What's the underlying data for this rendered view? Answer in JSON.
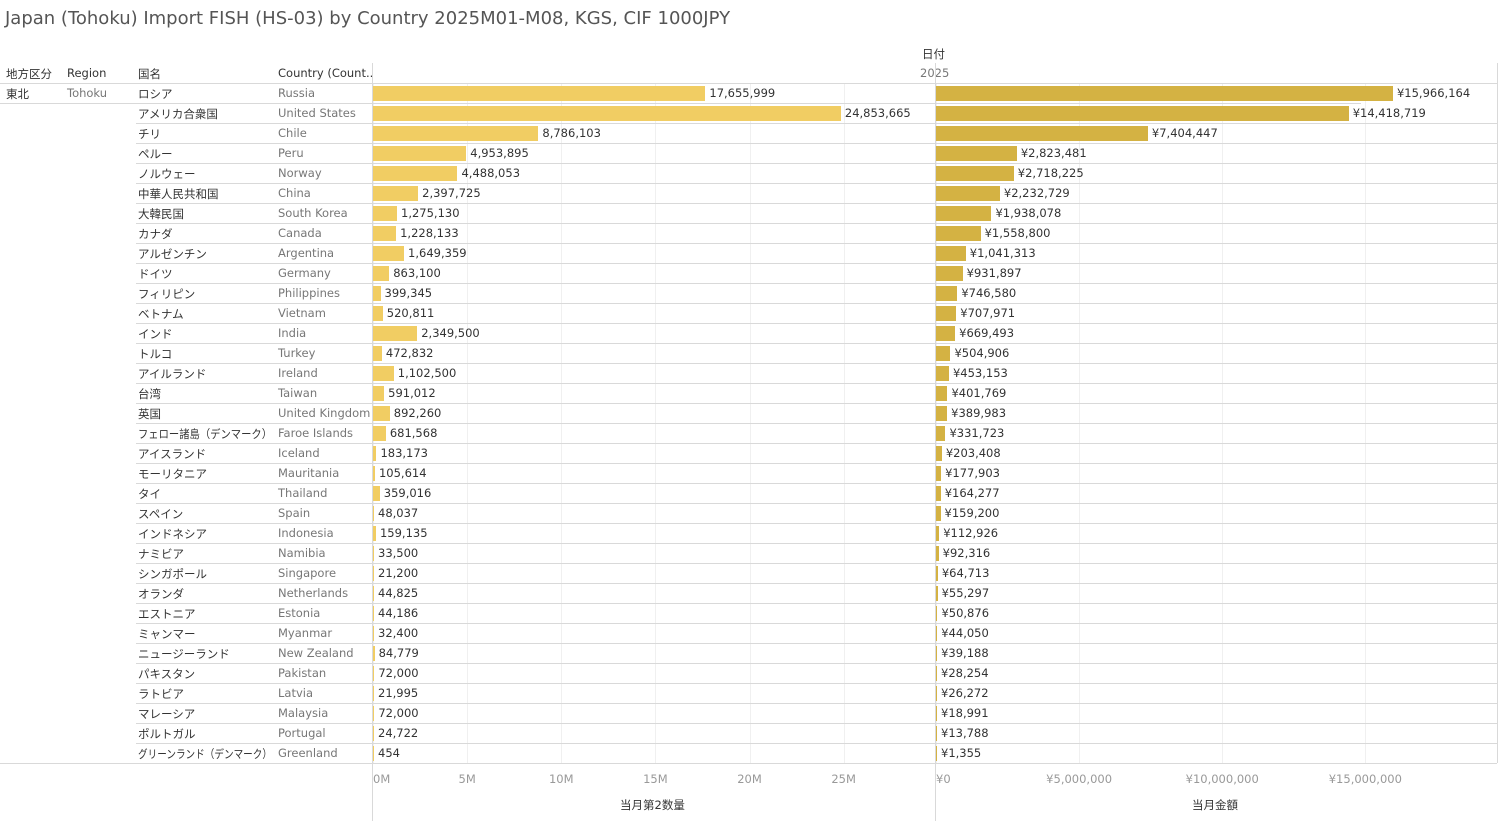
{
  "title": "Japan (Tohoku) Import FISH (HS-03) by Country 2025M01-M08, KGS, CIF 1000JPY",
  "headers": {
    "area_jp": "地方区分",
    "region": "Region",
    "country_jp": "国名",
    "country": "Country (Count..",
    "date": "日付",
    "year": "2025"
  },
  "area": {
    "jp": "東北",
    "en": "Tohoku"
  },
  "colors": {
    "qty": "#f1cd63",
    "amt": "#d4b243"
  },
  "chart_data": [
    {
      "type": "bar",
      "orientation": "horizontal",
      "xlabel": "当月第2数量",
      "xlim": [
        0,
        29800000
      ],
      "ticks": [
        0,
        5000000,
        10000000,
        15000000,
        20000000,
        25000000
      ],
      "tick_labels": [
        "0M",
        "5M",
        "10M",
        "15M",
        "20M",
        "25M"
      ]
    },
    {
      "type": "bar",
      "orientation": "horizontal",
      "xlabel": "当月金額",
      "xlim": [
        0,
        19600000
      ],
      "ticks": [
        0,
        5000000,
        10000000,
        15000000
      ],
      "tick_labels": [
        "¥0",
        "¥5,000,000",
        "¥10,000,000",
        "¥15,000,000"
      ]
    }
  ],
  "rows": [
    [
      "ロシア",
      "Russia",
      17655999,
      15966164
    ],
    [
      "アメリカ合衆国",
      "United States",
      24853665,
      14418719
    ],
    [
      "チリ",
      "Chile",
      8786103,
      7404447
    ],
    [
      "ペルー",
      "Peru",
      4953895,
      2823481
    ],
    [
      "ノルウェー",
      "Norway",
      4488053,
      2718225
    ],
    [
      "中華人民共和国",
      "China",
      2397725,
      2232729
    ],
    [
      "大韓民国",
      "South Korea",
      1275130,
      1938078
    ],
    [
      "カナダ",
      "Canada",
      1228133,
      1558800
    ],
    [
      "アルゼンチン",
      "Argentina",
      1649359,
      1041313
    ],
    [
      "ドイツ",
      "Germany",
      863100,
      931897
    ],
    [
      "フィリピン",
      "Philippines",
      399345,
      746580
    ],
    [
      "ベトナム",
      "Vietnam",
      520811,
      707971
    ],
    [
      "インド",
      "India",
      2349500,
      669493
    ],
    [
      "トルコ",
      "Turkey",
      472832,
      504906
    ],
    [
      "アイルランド",
      "Ireland",
      1102500,
      453153
    ],
    [
      "台湾",
      "Taiwan",
      591012,
      401769
    ],
    [
      "英国",
      "United Kingdom",
      892260,
      389983
    ],
    [
      "フェロー諸島（デンマーク）",
      "Faroe Islands",
      681568,
      331723
    ],
    [
      "アイスランド",
      "Iceland",
      183173,
      203408
    ],
    [
      "モーリタニア",
      "Mauritania",
      105614,
      177903
    ],
    [
      "タイ",
      "Thailand",
      359016,
      164277
    ],
    [
      "スペイン",
      "Spain",
      48037,
      159200
    ],
    [
      "インドネシア",
      "Indonesia",
      159135,
      112926
    ],
    [
      "ナミビア",
      "Namibia",
      33500,
      92316
    ],
    [
      "シンガポール",
      "Singapore",
      21200,
      64713
    ],
    [
      "オランダ",
      "Netherlands",
      44825,
      55297
    ],
    [
      "エストニア",
      "Estonia",
      44186,
      50876
    ],
    [
      "ミャンマー",
      "Myanmar",
      32400,
      44050
    ],
    [
      "ニュージーランド",
      "New Zealand",
      84779,
      39188
    ],
    [
      "パキスタン",
      "Pakistan",
      72000,
      28254
    ],
    [
      "ラトビア",
      "Latvia",
      21995,
      26272
    ],
    [
      "マレーシア",
      "Malaysia",
      72000,
      18991
    ],
    [
      "ポルトガル",
      "Portugal",
      24722,
      13788
    ],
    [
      "グリーンランド（デンマーク）",
      "Greenland",
      454,
      1355
    ]
  ]
}
